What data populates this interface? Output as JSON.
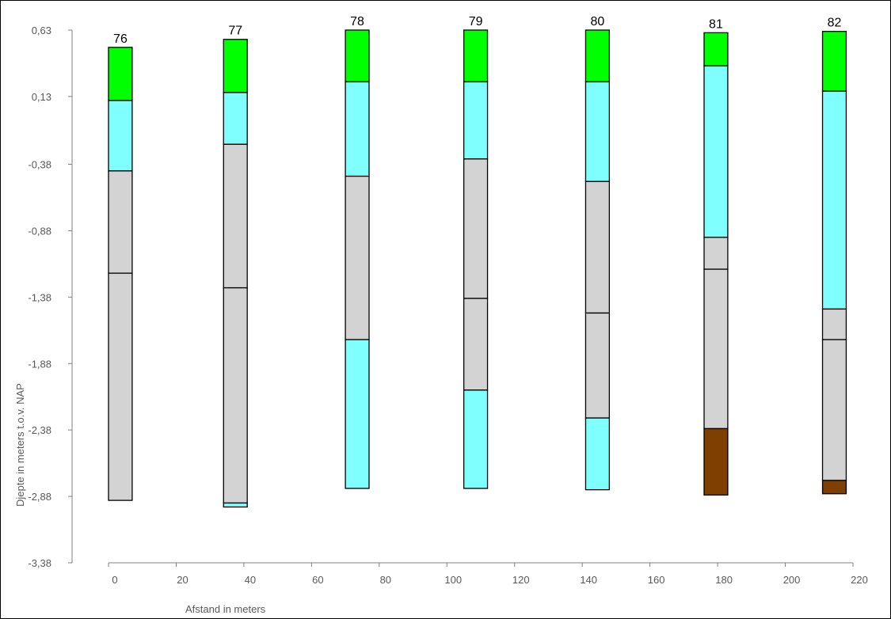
{
  "chart_data": {
    "type": "bar",
    "title": "",
    "xlabel": "Afstand in meters",
    "ylabel": "Djepte in meters t.o.v. NAP",
    "xlim": [
      0,
      220
    ],
    "ylim": [
      -3.38,
      0.63
    ],
    "x_ticks": [
      0,
      20,
      40,
      60,
      80,
      100,
      120,
      140,
      160,
      180,
      200,
      220
    ],
    "y_ticks": [
      "0,63",
      "0,13",
      "-0,38",
      "-0,88",
      "-1,38",
      "-1,88",
      "-2,38",
      "-2,88",
      "-3,38"
    ],
    "y_tick_values": [
      0.63,
      0.13,
      -0.38,
      -0.88,
      -1.38,
      -1.88,
      -2.38,
      -2.88,
      -3.38
    ],
    "colors": {
      "green": "#00ff00",
      "cyan": "#80ffff",
      "gray": "#d3d3d3",
      "brown": "#7f3f00"
    },
    "boreholes": [
      {
        "label": "76",
        "x_start": 0,
        "x_end": 7,
        "layers": [
          {
            "color": "green",
            "top": 0.5,
            "bottom": 0.1
          },
          {
            "color": "cyan",
            "top": 0.1,
            "bottom": -0.43
          },
          {
            "color": "gray",
            "top": -0.43,
            "bottom": -1.2
          },
          {
            "color": "gray",
            "top": -1.2,
            "bottom": -2.91
          }
        ]
      },
      {
        "label": "77",
        "x_start": 34,
        "x_end": 41,
        "layers": [
          {
            "color": "green",
            "top": 0.56,
            "bottom": 0.16
          },
          {
            "color": "cyan",
            "top": 0.16,
            "bottom": -0.23
          },
          {
            "color": "gray",
            "top": -0.23,
            "bottom": -1.31
          },
          {
            "color": "gray",
            "top": -1.31,
            "bottom": -2.93
          },
          {
            "color": "cyan",
            "top": -2.93,
            "bottom": -2.96
          }
        ]
      },
      {
        "label": "78",
        "x_start": 70,
        "x_end": 77,
        "layers": [
          {
            "color": "green",
            "top": 0.63,
            "bottom": 0.24
          },
          {
            "color": "cyan",
            "top": 0.24,
            "bottom": -0.47
          },
          {
            "color": "gray",
            "top": -0.47,
            "bottom": -1.7
          },
          {
            "color": "cyan",
            "top": -1.7,
            "bottom": -2.82
          }
        ]
      },
      {
        "label": "79",
        "x_start": 105,
        "x_end": 112,
        "layers": [
          {
            "color": "green",
            "top": 0.63,
            "bottom": 0.24
          },
          {
            "color": "cyan",
            "top": 0.24,
            "bottom": -0.34
          },
          {
            "color": "gray",
            "top": -0.34,
            "bottom": -1.39
          },
          {
            "color": "gray",
            "top": -1.39,
            "bottom": -2.08
          },
          {
            "color": "cyan",
            "top": -2.08,
            "bottom": -2.82
          }
        ]
      },
      {
        "label": "80",
        "x_start": 141,
        "x_end": 148,
        "layers": [
          {
            "color": "green",
            "top": 0.63,
            "bottom": 0.24
          },
          {
            "color": "cyan",
            "top": 0.24,
            "bottom": -0.51
          },
          {
            "color": "gray",
            "top": -0.51,
            "bottom": -1.5
          },
          {
            "color": "gray",
            "top": -1.5,
            "bottom": -2.29
          },
          {
            "color": "cyan",
            "top": -2.29,
            "bottom": -2.83
          }
        ]
      },
      {
        "label": "81",
        "x_start": 176,
        "x_end": 183,
        "layers": [
          {
            "color": "green",
            "top": 0.61,
            "bottom": 0.36
          },
          {
            "color": "cyan",
            "top": 0.36,
            "bottom": -0.93
          },
          {
            "color": "gray",
            "top": -0.93,
            "bottom": -1.17
          },
          {
            "color": "gray",
            "top": -1.17,
            "bottom": -2.37
          },
          {
            "color": "brown",
            "top": -2.37,
            "bottom": -2.87
          }
        ]
      },
      {
        "label": "82",
        "x_start": 211,
        "x_end": 218,
        "layers": [
          {
            "color": "green",
            "top": 0.62,
            "bottom": 0.17
          },
          {
            "color": "cyan",
            "top": 0.17,
            "bottom": -1.47
          },
          {
            "color": "gray",
            "top": -1.47,
            "bottom": -1.7
          },
          {
            "color": "gray",
            "top": -1.7,
            "bottom": -2.76
          },
          {
            "color": "brown",
            "top": -2.76,
            "bottom": -2.86
          }
        ]
      }
    ]
  }
}
